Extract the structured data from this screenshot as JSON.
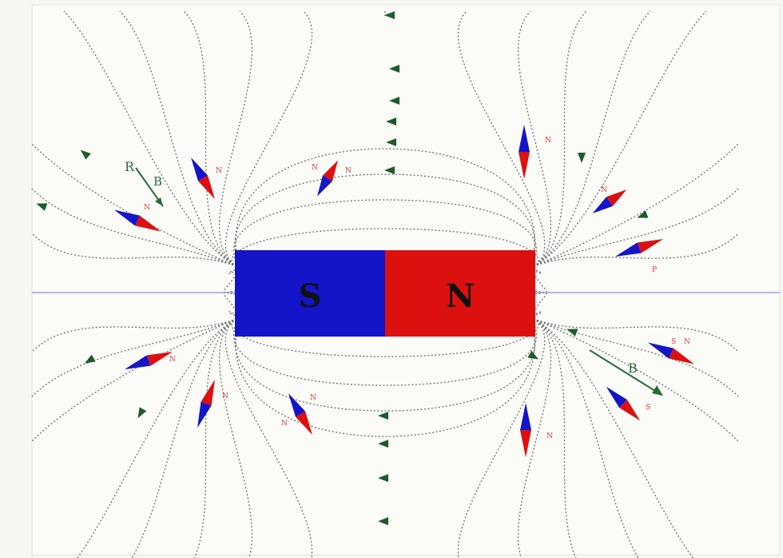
{
  "magnet": {
    "south_label": "S",
    "north_label": "N",
    "south_color": "#1414c8",
    "north_color": "#dd1010"
  },
  "colors": {
    "background": "#f6f6f2",
    "field_line": "#6c6c6c",
    "axis_line": "#9aa4dc",
    "arrow": "#1f5a2e",
    "needle_north": "#dd1010",
    "needle_south": "#1414c8",
    "label": "#d03838",
    "vector": "#2a6a3a"
  },
  "vectors": [
    {
      "label_a": "R",
      "label_b": "B"
    },
    {
      "label_a": "B"
    }
  ],
  "labels": {
    "small": [
      "N",
      "N",
      "N",
      "N",
      "N",
      "N",
      "P",
      "N",
      "N",
      "N",
      "N",
      "N",
      "S",
      "N",
      "S"
    ]
  }
}
